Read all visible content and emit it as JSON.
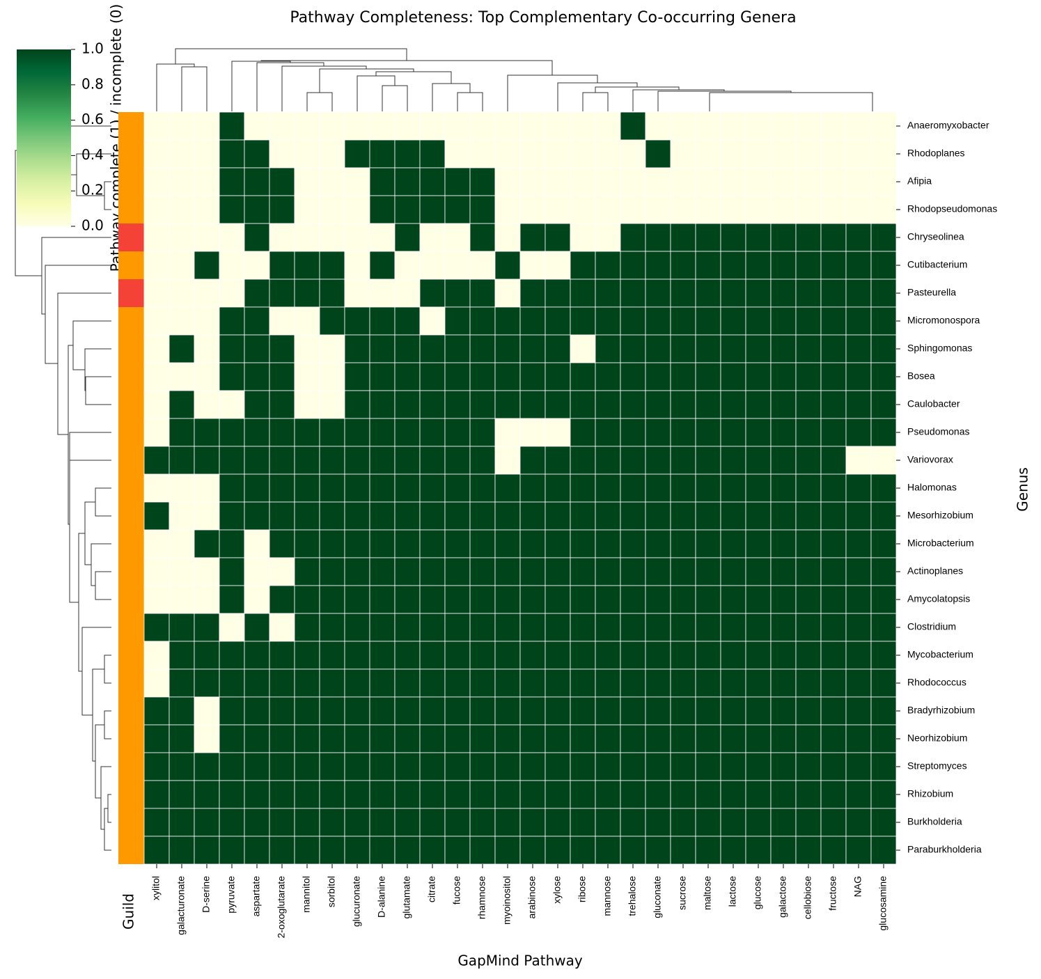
{
  "chart_data": {
    "type": "heatmap",
    "title": "Pathway Completeness: Top Complementary Co-occurring Genera",
    "x_label": "GapMind Pathway",
    "y_label": "Genus",
    "guild_label": "Guild",
    "colorbar_label": "Pathway complete (1) / incomplete (0)",
    "colorscale": [
      "#ffffe5",
      "#f7fcb9",
      "#d9f0a3",
      "#addd8e",
      "#78c679",
      "#41ab5d",
      "#238443",
      "#006837",
      "#00441b"
    ],
    "clim": [
      0,
      1
    ],
    "cticks": [
      {
        "value": 0,
        "label": "0.0"
      },
      0.2,
      0.4,
      0.6,
      0.8,
      {
        "value": 1,
        "label": "1.0"
      }
    ],
    "columns": [
      "xylitol",
      "galacturonate",
      "D-serine",
      "pyruvate",
      "aspartate",
      "2-oxoglutarate",
      "mannitol",
      "sorbitol",
      "glucuronate",
      "D-alanine",
      "glutamate",
      "citrate",
      "fucose",
      "rhamnose",
      "myoinositol",
      "arabinose",
      "xylose",
      "ribose",
      "mannose",
      "trehalose",
      "gluconate",
      "sucrose",
      "maltose",
      "lactose",
      "glucose",
      "galactose",
      "cellobiose",
      "fructose",
      "NAG",
      "glucosamine"
    ],
    "rows": [
      "Anaeromyxobacter",
      "Rhodoplanes",
      "Afipia",
      "Rhodopseudomonas",
      "Chryseolinea",
      "Cutibacterium",
      "Pasteurella",
      "Micromonospora",
      "Sphingomonas",
      "Bosea",
      "Caulobacter",
      "Pseudomonas",
      "Variovorax",
      "Halomonas",
      "Mesorhizobium",
      "Microbacterium",
      "Actinoplanes",
      "Amycolatopsis",
      "Clostridium",
      "Mycobacterium",
      "Rhodococcus",
      "Bradyrhizobium",
      "Neorhizobium",
      "Streptomyces",
      "Rhizobium",
      "Burkholderia",
      "Paraburkholderia"
    ],
    "guild_colors": [
      "#fe9a00",
      "#fe9a00",
      "#fe9a00",
      "#fe9a00",
      "#f44336",
      "#fe9a00",
      "#f44336",
      "#fe9a00",
      "#fe9a00",
      "#fe9a00",
      "#fe9a00",
      "#fe9a00",
      "#fe9a00",
      "#fe9a00",
      "#fe9a00",
      "#fe9a00",
      "#fe9a00",
      "#fe9a00",
      "#fe9a00",
      "#fe9a00",
      "#fe9a00",
      "#fe9a00",
      "#fe9a00",
      "#fe9a00",
      "#fe9a00",
      "#fe9a00",
      "#fe9a00"
    ],
    "values": [
      [
        0,
        0,
        0,
        1,
        0,
        0,
        0,
        0,
        0,
        0,
        0,
        0,
        0,
        0,
        0,
        0,
        0,
        0,
        0,
        1,
        0,
        0,
        0,
        0,
        0,
        0,
        0,
        0,
        0,
        0
      ],
      [
        0,
        0,
        0,
        1,
        1,
        0,
        0,
        0,
        1,
        1,
        1,
        1,
        0,
        0,
        0,
        0,
        0,
        0,
        0,
        0,
        1,
        0,
        0,
        0,
        0,
        0,
        0,
        0,
        0,
        0
      ],
      [
        0,
        0,
        0,
        1,
        1,
        1,
        0,
        0,
        0,
        1,
        1,
        1,
        1,
        1,
        0,
        0,
        0,
        0,
        0,
        0,
        0,
        0,
        0,
        0,
        0,
        0,
        0,
        0,
        0,
        0
      ],
      [
        0,
        0,
        0,
        1,
        1,
        1,
        0,
        0,
        0,
        1,
        1,
        1,
        1,
        1,
        0,
        0,
        0,
        0,
        0,
        0,
        0,
        0,
        0,
        0,
        0,
        0,
        0,
        0,
        0,
        0
      ],
      [
        0,
        0,
        0,
        0,
        1,
        0,
        0,
        0,
        0,
        0,
        1,
        0,
        0,
        1,
        0,
        1,
        1,
        0,
        0,
        1,
        1,
        1,
        1,
        1,
        1,
        1,
        1,
        1,
        1,
        1
      ],
      [
        0,
        0,
        1,
        0,
        0,
        1,
        1,
        1,
        0,
        1,
        0,
        0,
        0,
        0,
        1,
        0,
        0,
        1,
        1,
        1,
        1,
        1,
        1,
        1,
        1,
        1,
        1,
        1,
        1,
        1
      ],
      [
        0,
        0,
        0,
        0,
        1,
        1,
        1,
        1,
        0,
        0,
        0,
        1,
        1,
        1,
        0,
        1,
        1,
        1,
        1,
        1,
        1,
        1,
        1,
        1,
        1,
        1,
        1,
        1,
        1,
        1
      ],
      [
        0,
        0,
        0,
        1,
        1,
        0,
        0,
        1,
        1,
        1,
        1,
        0,
        1,
        1,
        1,
        1,
        1,
        1,
        1,
        1,
        1,
        1,
        1,
        1,
        1,
        1,
        1,
        1,
        1,
        1
      ],
      [
        0,
        1,
        0,
        1,
        1,
        1,
        0,
        0,
        1,
        1,
        1,
        1,
        1,
        1,
        1,
        1,
        1,
        0,
        1,
        1,
        1,
        1,
        1,
        1,
        1,
        1,
        1,
        1,
        1,
        1
      ],
      [
        0,
        0,
        0,
        1,
        1,
        1,
        0,
        0,
        1,
        1,
        1,
        1,
        1,
        1,
        1,
        1,
        1,
        1,
        1,
        1,
        1,
        1,
        1,
        1,
        1,
        1,
        1,
        1,
        1,
        1
      ],
      [
        0,
        1,
        0,
        0,
        1,
        1,
        0,
        0,
        1,
        1,
        1,
        1,
        1,
        1,
        1,
        1,
        1,
        1,
        1,
        1,
        1,
        1,
        1,
        1,
        1,
        1,
        1,
        1,
        1,
        1
      ],
      [
        0,
        1,
        1,
        1,
        1,
        1,
        1,
        1,
        1,
        1,
        1,
        1,
        1,
        1,
        0,
        0,
        0,
        1,
        1,
        1,
        1,
        1,
        1,
        1,
        1,
        1,
        1,
        1,
        1,
        1
      ],
      [
        1,
        1,
        1,
        1,
        1,
        1,
        1,
        1,
        1,
        1,
        1,
        1,
        1,
        1,
        0,
        1,
        1,
        1,
        1,
        1,
        1,
        1,
        1,
        1,
        1,
        1,
        1,
        1,
        0,
        0
      ],
      [
        0,
        0,
        0,
        1,
        1,
        1,
        1,
        1,
        1,
        1,
        1,
        1,
        1,
        1,
        1,
        1,
        1,
        1,
        1,
        1,
        1,
        1,
        1,
        1,
        1,
        1,
        1,
        1,
        1,
        1
      ],
      [
        1,
        0,
        0,
        1,
        1,
        1,
        1,
        1,
        1,
        1,
        1,
        1,
        1,
        1,
        1,
        1,
        1,
        1,
        1,
        1,
        1,
        1,
        1,
        1,
        1,
        1,
        1,
        1,
        1,
        1
      ],
      [
        0,
        0,
        1,
        1,
        0,
        1,
        1,
        1,
        1,
        1,
        1,
        1,
        1,
        1,
        1,
        1,
        1,
        1,
        1,
        1,
        1,
        1,
        1,
        1,
        1,
        1,
        1,
        1,
        1,
        1
      ],
      [
        0,
        0,
        0,
        1,
        0,
        0,
        1,
        1,
        1,
        1,
        1,
        1,
        1,
        1,
        1,
        1,
        1,
        1,
        1,
        1,
        1,
        1,
        1,
        1,
        1,
        1,
        1,
        1,
        1,
        1
      ],
      [
        0,
        0,
        0,
        1,
        0,
        1,
        1,
        1,
        1,
        1,
        1,
        1,
        1,
        1,
        1,
        1,
        1,
        1,
        1,
        1,
        1,
        1,
        1,
        1,
        1,
        1,
        1,
        1,
        1,
        1
      ],
      [
        1,
        1,
        1,
        0,
        1,
        0,
        1,
        1,
        1,
        1,
        1,
        1,
        1,
        1,
        1,
        1,
        1,
        1,
        1,
        1,
        1,
        1,
        1,
        1,
        1,
        1,
        1,
        1,
        1,
        1
      ],
      [
        0,
        1,
        1,
        1,
        1,
        1,
        1,
        1,
        1,
        1,
        1,
        1,
        1,
        1,
        1,
        1,
        1,
        1,
        1,
        1,
        1,
        1,
        1,
        1,
        1,
        1,
        1,
        1,
        1,
        1
      ],
      [
        0,
        1,
        1,
        1,
        1,
        1,
        1,
        1,
        1,
        1,
        1,
        1,
        1,
        1,
        1,
        1,
        1,
        1,
        1,
        1,
        1,
        1,
        1,
        1,
        1,
        1,
        1,
        1,
        1,
        1
      ],
      [
        1,
        1,
        0,
        1,
        1,
        1,
        1,
        1,
        1,
        1,
        1,
        1,
        1,
        1,
        1,
        1,
        1,
        1,
        1,
        1,
        1,
        1,
        1,
        1,
        1,
        1,
        1,
        1,
        1,
        1
      ],
      [
        1,
        1,
        0,
        1,
        1,
        1,
        1,
        1,
        1,
        1,
        1,
        1,
        1,
        1,
        1,
        1,
        1,
        1,
        1,
        1,
        1,
        1,
        1,
        1,
        1,
        1,
        1,
        1,
        1,
        1
      ],
      [
        1,
        1,
        1,
        1,
        1,
        1,
        1,
        1,
        1,
        1,
        1,
        1,
        1,
        1,
        1,
        1,
        1,
        1,
        1,
        1,
        1,
        1,
        1,
        1,
        1,
        1,
        1,
        1,
        1,
        1
      ],
      [
        1,
        1,
        1,
        1,
        1,
        1,
        1,
        1,
        1,
        1,
        1,
        1,
        1,
        1,
        1,
        1,
        1,
        1,
        1,
        1,
        1,
        1,
        1,
        1,
        1,
        1,
        1,
        1,
        1,
        1
      ],
      [
        1,
        1,
        1,
        1,
        1,
        1,
        1,
        1,
        1,
        1,
        1,
        1,
        1,
        1,
        1,
        1,
        1,
        1,
        1,
        1,
        1,
        1,
        1,
        1,
        1,
        1,
        1,
        1,
        1,
        1
      ],
      [
        1,
        1,
        1,
        1,
        1,
        1,
        1,
        1,
        1,
        1,
        1,
        1,
        1,
        1,
        1,
        1,
        1,
        1,
        1,
        1,
        1,
        1,
        1,
        1,
        1,
        1,
        1,
        1,
        1,
        1
      ]
    ]
  }
}
